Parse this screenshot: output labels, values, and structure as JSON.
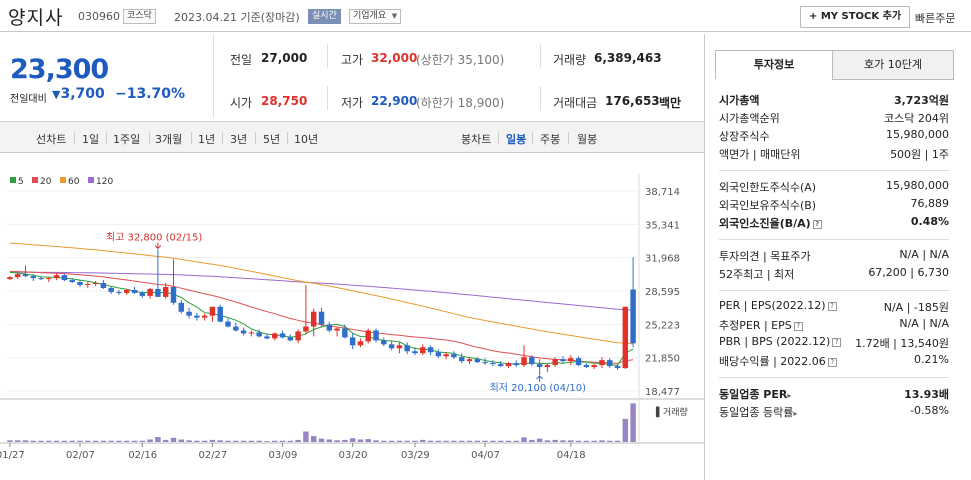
{
  "stock": {
    "name": "양지사",
    "code": "030960",
    "market": "코스닥",
    "date_basis": "2023.04.21 기준(장마감)",
    "realtime": "실시간",
    "company_overview": "기업개요",
    "my_stock_button": "+ MY STOCK 추가",
    "quick_order": "빠른주문"
  },
  "price": {
    "current": "23,300",
    "change_label": "전일대비",
    "change_value": "3,700",
    "change_rate": "−13.70%"
  },
  "stats": {
    "prev_close_label": "전일",
    "prev_close": "27,000",
    "high_label": "고가",
    "high": "32,000",
    "upper_limit": "(상한가 35,100)",
    "volume_label": "거래량",
    "volume": "6,389,463",
    "open_label": "시가",
    "open": "28,750",
    "low_label": "저가",
    "low": "22,900",
    "lower_limit": "(하한가 18,900)",
    "amount_label": "거래대금",
    "amount": "176,653",
    "amount_unit": "백만"
  },
  "period_tabs": {
    "line_chart": "선차트",
    "items": [
      "1일",
      "1주일",
      "3개월",
      "1년",
      "3년",
      "5년",
      "10년"
    ],
    "candle_chart": "봉차트",
    "candle_items": [
      "일봉",
      "주봉",
      "월봉"
    ],
    "active_candle": "일봉"
  },
  "right_panel": {
    "tab1": "투자정보",
    "tab2": "호가 10단계",
    "market_cap_label": "시가총액",
    "market_cap": "3,723억원",
    "market_cap_rank_label": "시가총액순위",
    "market_cap_rank": "코스닥 204위",
    "listed_shares_label": "상장주식수",
    "listed_shares": "15,980,000",
    "par_label": "액면가 | 매매단위",
    "par": "500원 | 1주",
    "foreign_limit_label": "외국인한도주식수(A)",
    "foreign_limit": "15,980,000",
    "foreign_hold_label": "외국인보유주식수(B)",
    "foreign_hold": "76,889",
    "foreign_ratio_label": "외국인소진율(B/A)",
    "foreign_ratio": "0.48%",
    "opinion_label": "투자의견 | 목표주가",
    "opinion": "N/A | N/A",
    "week52_label": "52주최고 | 최저",
    "week52": "67,200 | 6,730",
    "per_label": "PER | EPS(2022.12)",
    "per": "N/A | -185원",
    "est_per_label": "추정PER | EPS",
    "est_per": "N/A | N/A",
    "pbr_label": "PBR | BPS (2022.12)",
    "pbr": "1.72배 | 13,540원",
    "div_label": "배당수익률 | 2022.06",
    "div": "0.21%",
    "industry_per_label": "동일업종 PER",
    "industry_per": "13.93배",
    "industry_rate_label": "동일업종 등락률",
    "industry_rate": "-0.58%"
  },
  "chart_data": {
    "type": "candlestick",
    "legend": [
      "5",
      "20",
      "60",
      "120"
    ],
    "colors": {
      "ma5": "#2e9e3c",
      "ma20": "#e05050",
      "ma60": "#e89a30",
      "ma120": "#9a6ad0",
      "up": "#e0312b",
      "down": "#2f6fcb",
      "volume": "#9a85c4"
    },
    "y_ticks": [
      "38,714",
      "35,341",
      "31,968",
      "28,595",
      "25,223",
      "21,850",
      "18,477"
    ],
    "ylim": [
      18477,
      38714
    ],
    "x_ticks": [
      "01/27",
      "02/07",
      "02/16",
      "02/27",
      "03/09",
      "03/20",
      "03/29",
      "04/07",
      "04/18"
    ],
    "high_annotation": "최고 32,800 (02/15)",
    "low_annotation": "최저 20,100 (04/10)",
    "volume_label": "거래량",
    "candles": [
      [
        29800,
        30100,
        29700,
        30000
      ],
      [
        30000,
        30400,
        29800,
        30300
      ],
      [
        30300,
        31200,
        30000,
        30100
      ],
      [
        30100,
        30300,
        29600,
        29900
      ],
      [
        29900,
        30100,
        29700,
        29800
      ],
      [
        29800,
        30000,
        29500,
        29900
      ],
      [
        29900,
        30400,
        29700,
        30200
      ],
      [
        30200,
        30300,
        29600,
        29700
      ],
      [
        29700,
        29900,
        29400,
        29500
      ],
      [
        29500,
        29700,
        29000,
        29200
      ],
      [
        29200,
        29500,
        28900,
        29300
      ],
      [
        29300,
        29600,
        29100,
        29400
      ],
      [
        29400,
        29700,
        28800,
        28900
      ],
      [
        28900,
        29100,
        28300,
        28500
      ],
      [
        28500,
        28700,
        28200,
        28400
      ],
      [
        28400,
        28800,
        28200,
        28700
      ],
      [
        28700,
        29000,
        28300,
        28400
      ],
      [
        28400,
        28600,
        27900,
        28100
      ],
      [
        28100,
        28900,
        27800,
        28800
      ],
      [
        28800,
        32800,
        28200,
        28000
      ],
      [
        28000,
        29400,
        27800,
        29000
      ],
      [
        29000,
        31800,
        27200,
        27400
      ],
      [
        27400,
        27700,
        26300,
        26500
      ],
      [
        26500,
        26900,
        25800,
        26100
      ],
      [
        26100,
        26400,
        25600,
        25900
      ],
      [
        25900,
        26300,
        25600,
        26100
      ],
      [
        26100,
        27000,
        25500,
        27000
      ],
      [
        27000,
        27200,
        25400,
        25500
      ],
      [
        25500,
        25800,
        24900,
        25000
      ],
      [
        25000,
        25400,
        24500,
        24600
      ],
      [
        24600,
        24900,
        24100,
        24300
      ],
      [
        24300,
        24600,
        24000,
        24400
      ],
      [
        24400,
        24700,
        23900,
        24000
      ],
      [
        24000,
        24300,
        23700,
        23800
      ],
      [
        23800,
        24400,
        23600,
        24300
      ],
      [
        24300,
        24600,
        23800,
        23900
      ],
      [
        23900,
        24200,
        23500,
        23600
      ],
      [
        23600,
        24700,
        23300,
        24500
      ],
      [
        24500,
        29200,
        24200,
        25000
      ],
      [
        25000,
        26800,
        24000,
        26500
      ],
      [
        26500,
        26900,
        24900,
        25200
      ],
      [
        25200,
        25500,
        24400,
        24600
      ],
      [
        24600,
        24900,
        24000,
        24800
      ],
      [
        24800,
        25200,
        23800,
        23900
      ],
      [
        23900,
        24300,
        22700,
        23100
      ],
      [
        23100,
        23800,
        22900,
        23500
      ],
      [
        23500,
        24800,
        23300,
        24600
      ],
      [
        24600,
        24800,
        23400,
        23600
      ],
      [
        23600,
        23900,
        23000,
        23200
      ],
      [
        23200,
        23500,
        22600,
        22800
      ],
      [
        22800,
        23400,
        22300,
        23100
      ],
      [
        23100,
        23400,
        22200,
        22500
      ],
      [
        22500,
        22900,
        22100,
        22300
      ],
      [
        22300,
        23200,
        22100,
        22900
      ],
      [
        22900,
        23100,
        22100,
        22400
      ],
      [
        22400,
        22700,
        21800,
        22000
      ],
      [
        22000,
        22400,
        21700,
        22200
      ],
      [
        22200,
        22500,
        21700,
        21900
      ],
      [
        21900,
        22300,
        21300,
        21500
      ],
      [
        21500,
        21900,
        21200,
        21700
      ],
      [
        21700,
        21900,
        21300,
        21400
      ],
      [
        21400,
        21800,
        21100,
        21300
      ],
      [
        21300,
        21600,
        21000,
        21200
      ],
      [
        21200,
        21500,
        20900,
        21000
      ],
      [
        21000,
        21400,
        20800,
        21300
      ],
      [
        21300,
        21600,
        20900,
        21100
      ],
      [
        21100,
        23100,
        20900,
        21900
      ],
      [
        21900,
        22100,
        21000,
        21200
      ],
      [
        21200,
        21700,
        20100,
        20900
      ],
      [
        20900,
        21300,
        20400,
        21100
      ],
      [
        21100,
        21900,
        20900,
        21700
      ],
      [
        21700,
        22000,
        21300,
        21500
      ],
      [
        21500,
        22100,
        21100,
        21800
      ],
      [
        21800,
        22000,
        21000,
        21100
      ],
      [
        21100,
        21300,
        20800,
        20900
      ],
      [
        20900,
        21200,
        20700,
        21100
      ],
      [
        21100,
        21900,
        20800,
        21600
      ],
      [
        21600,
        21800,
        20800,
        21000
      ],
      [
        21000,
        21200,
        20600,
        20800
      ],
      [
        20800,
        27000,
        20700,
        27000
      ],
      [
        28750,
        32000,
        22900,
        23300
      ]
    ],
    "volumes": [
      0.04,
      0.04,
      0.04,
      0.03,
      0.03,
      0.03,
      0.03,
      0.03,
      0.03,
      0.03,
      0.03,
      0.03,
      0.03,
      0.03,
      0.03,
      0.03,
      0.03,
      0.03,
      0.06,
      0.12,
      0.05,
      0.1,
      0.06,
      0.04,
      0.03,
      0.03,
      0.05,
      0.04,
      0.03,
      0.03,
      0.03,
      0.03,
      0.03,
      0.02,
      0.03,
      0.03,
      0.03,
      0.05,
      0.25,
      0.14,
      0.08,
      0.06,
      0.04,
      0.05,
      0.09,
      0.06,
      0.07,
      0.04,
      0.03,
      0.03,
      0.03,
      0.03,
      0.03,
      0.05,
      0.03,
      0.03,
      0.03,
      0.03,
      0.03,
      0.03,
      0.03,
      0.03,
      0.03,
      0.03,
      0.03,
      0.03,
      0.11,
      0.05,
      0.08,
      0.04,
      0.05,
      0.04,
      0.04,
      0.03,
      0.03,
      0.03,
      0.04,
      0.03,
      0.03,
      0.55,
      0.92
    ]
  }
}
